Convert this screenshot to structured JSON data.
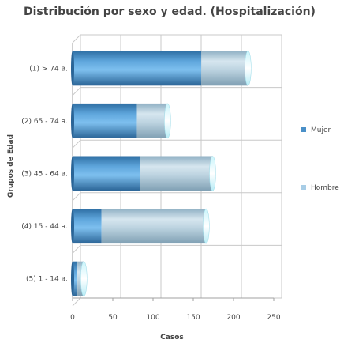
{
  "chart_data": {
    "type": "bar",
    "orientation": "horizontal",
    "stacked": true,
    "title": "Distribución por sexo y edad. (Hospitalización)",
    "xlabel": "Casos",
    "ylabel": "Grupos de Edad",
    "categories": [
      "(1) > 74 a.",
      "(2) 65 - 74 a.",
      "(3) 45 - 64 a.",
      "(4) 15 - 44 a.",
      "(5) 1 - 14 a."
    ],
    "series": [
      {
        "name": "Mujer",
        "values": [
          160,
          80,
          84,
          36,
          6
        ],
        "color": "#4a90c8"
      },
      {
        "name": "Hombre",
        "values": [
          58,
          38,
          90,
          130,
          8
        ],
        "color": "#a8cde6"
      }
    ],
    "xlim": [
      0,
      250
    ],
    "xticks": [
      0,
      50,
      100,
      150,
      200,
      250
    ],
    "grid": true,
    "legend_position": "right"
  }
}
